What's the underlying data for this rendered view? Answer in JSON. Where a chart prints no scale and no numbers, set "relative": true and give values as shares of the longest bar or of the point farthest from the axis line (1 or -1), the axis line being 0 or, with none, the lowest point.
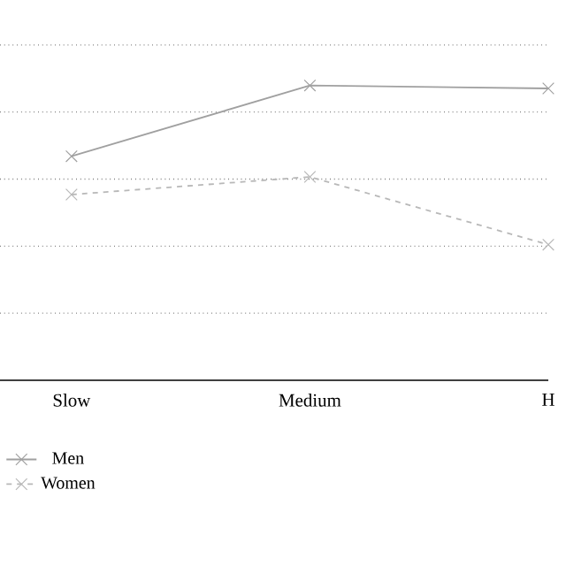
{
  "chart_data": {
    "type": "line",
    "categories": [
      "Slow",
      "Medium",
      "H"
    ],
    "relative": true,
    "series": [
      {
        "name": "Men",
        "color": "#a0a0a0",
        "values": [
          0.76,
          1.0,
          0.99
        ],
        "line_style": "solid"
      },
      {
        "name": "Women",
        "color": "#b8b8b8",
        "values": [
          0.63,
          0.69,
          0.46
        ],
        "line_style": "dashed"
      }
    ],
    "marker": "cross",
    "grid": "y",
    "legend": "bottom left"
  }
}
